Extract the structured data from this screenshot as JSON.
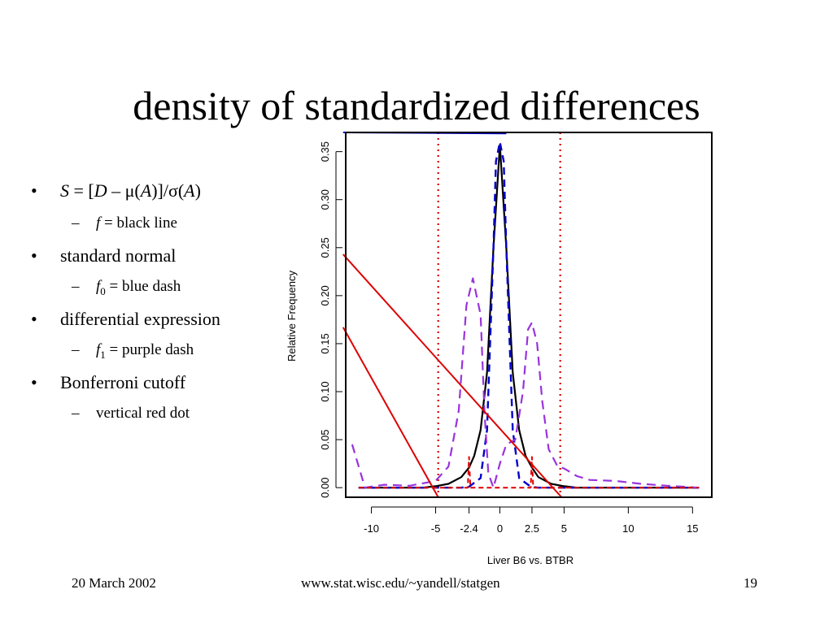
{
  "slide": {
    "title": "density of standardized differences",
    "footer": {
      "date": "20 March 2002",
      "url": "www.stat.wisc.edu/~yandell/statgen",
      "page": "19"
    }
  },
  "bullets": [
    {
      "level": 1,
      "pre": "S = [D – μ(A)]/σ(A)"
    },
    {
      "level": 2,
      "sym": "f",
      "sub": "",
      "rest": " = black line"
    },
    {
      "level": 1,
      "pre": "standard normal"
    },
    {
      "level": 2,
      "sym": "f",
      "sub": "0",
      "rest": " = blue dash"
    },
    {
      "level": 1,
      "pre": "differential expression"
    },
    {
      "level": 2,
      "sym": "f",
      "sub": "1",
      "rest": " = purple dash"
    },
    {
      "level": 1,
      "pre": "Bonferroni cutoff"
    },
    {
      "level": 2,
      "sym": "",
      "sub": "",
      "rest": "vertical red dot"
    }
  ],
  "chart_data": {
    "type": "line",
    "xlabel": "Liver B6 vs. BTBR",
    "ylabel": "Relative Frequency",
    "xlim": [
      -12,
      16.5
    ],
    "ylim": [
      -0.01,
      0.37
    ],
    "xticks": [
      -10,
      -5,
      -2.4,
      0,
      2.5,
      5,
      10,
      15
    ],
    "xtick_labels": [
      "-10",
      "-5",
      "-2.4",
      "0",
      "2.5",
      "5",
      "10",
      "15"
    ],
    "yticks": [
      0.0,
      0.05,
      0.1,
      0.15,
      0.2,
      0.25,
      0.3,
      0.35
    ],
    "ytick_labels": [
      "0.00",
      "0.05",
      "0.10",
      "0.15",
      "0.20",
      "0.25",
      "0.30",
      "0.35"
    ],
    "colors": {
      "black": "#000000",
      "blue": "#0000cc",
      "purple": "#9933dd",
      "red": "#dd0000"
    },
    "series": [
      {
        "style": "black-solid",
        "x": [
          -11,
          -6,
          -5,
          -4,
          -3,
          -2.4,
          -2,
          -1.5,
          -1,
          -0.5,
          0,
          0.5,
          1,
          1.5,
          2,
          2.5,
          3,
          4,
          5,
          6,
          10,
          15.5
        ],
        "y": [
          0.0,
          0.0,
          0.0015,
          0.004,
          0.011,
          0.021,
          0.033,
          0.06,
          0.12,
          0.25,
          0.357,
          0.25,
          0.12,
          0.06,
          0.033,
          0.021,
          0.011,
          0.004,
          0.0015,
          0.0,
          0.0,
          0.0
        ]
      },
      {
        "style": "blue-dash",
        "x": [
          -11,
          -3,
          -2.4,
          -1.5,
          -1,
          -0.5,
          -0.3,
          0,
          0.3,
          0.5,
          1,
          1.5,
          2.4,
          3,
          15.5
        ],
        "y": [
          0.0,
          0.0,
          0.001,
          0.01,
          0.06,
          0.25,
          0.34,
          0.36,
          0.34,
          0.25,
          0.06,
          0.01,
          0.001,
          0.0,
          0.0
        ]
      },
      {
        "style": "purple-dash",
        "x": [
          -11.5,
          -10.5,
          -9,
          -7,
          -5,
          -4,
          -3.2,
          -2.6,
          -2.1,
          -1.5,
          -1.2,
          -0.9,
          -0.5,
          0,
          0.5,
          1.2,
          1.8,
          2.2,
          2.5,
          2.9,
          3.3,
          3.8,
          4.5,
          5,
          6,
          7,
          9,
          11,
          13,
          15.5
        ],
        "y": [
          0.045,
          0.0,
          0.003,
          0.002,
          0.007,
          0.022,
          0.08,
          0.19,
          0.218,
          0.18,
          0.08,
          0.015,
          0.0,
          0.025,
          0.045,
          0.05,
          0.1,
          0.165,
          0.172,
          0.15,
          0.09,
          0.04,
          0.022,
          0.02,
          0.012,
          0.008,
          0.007,
          0.004,
          0.002,
          0.0
        ]
      },
      {
        "style": "red-dash",
        "x": [
          -11,
          -2.5,
          -2.4,
          -2.3,
          2.4,
          2.5,
          2.6,
          15.5
        ],
        "y": [
          0.0,
          0.0,
          0.032,
          0.0,
          0.0,
          0.032,
          0.0,
          0.0
        ]
      },
      {
        "style": "blue-solid",
        "x": [
          -12.2,
          0.5
        ],
        "y": [
          0.37,
          0.369
        ]
      },
      {
        "style": "red-solid",
        "x": [
          -12.2,
          4.8
        ],
        "y": [
          0.243,
          -0.01
        ]
      },
      {
        "style": "red-solid",
        "x": [
          -12.2,
          -4.8
        ],
        "y": [
          0.167,
          -0.01
        ]
      }
    ],
    "cutoffs": [
      -4.8,
      4.7
    ]
  }
}
